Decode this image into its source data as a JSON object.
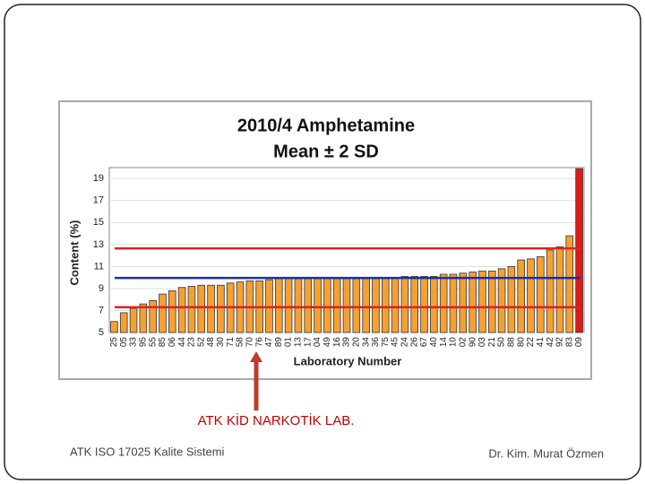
{
  "chart_data": {
    "type": "bar",
    "title": "2010/4 Amphetamine",
    "subtitle": "Mean ± 2 SD",
    "y_label": "Content (%)",
    "x_label": "Laboratory Number",
    "categories": [
      "25",
      "05",
      "33",
      "95",
      "55",
      "85",
      "06",
      "44",
      "23",
      "52",
      "48",
      "30",
      "71",
      "58",
      "70",
      "76",
      "47",
      "89",
      "01",
      "13",
      "17",
      "04",
      "49",
      "16",
      "39",
      "20",
      "34",
      "36",
      "75",
      "45",
      "24",
      "26",
      "67",
      "40",
      "14",
      "10",
      "02",
      "90",
      "03",
      "21",
      "50",
      "88",
      "80",
      "22",
      "41",
      "42",
      "92",
      "83",
      "09"
    ],
    "values": [
      6.0,
      6.8,
      7.2,
      7.6,
      7.9,
      8.5,
      8.8,
      9.1,
      9.2,
      9.3,
      9.3,
      9.3,
      9.5,
      9.6,
      9.7,
      9.7,
      9.8,
      9.9,
      9.9,
      9.9,
      9.9,
      9.9,
      9.9,
      9.9,
      9.9,
      9.9,
      9.9,
      9.9,
      10.0,
      10.0,
      10.1,
      10.1,
      10.1,
      10.1,
      10.3,
      10.3,
      10.4,
      10.5,
      10.6,
      10.6,
      10.8,
      11.0,
      11.6,
      11.7,
      11.9,
      12.5,
      12.8,
      13.8,
      19.9
    ],
    "colors": [
      "#f5a033",
      "#f5a033",
      "#f5a033",
      "#f5a033",
      "#f5a033",
      "#f5a033",
      "#f5a033",
      "#f5a033",
      "#f5a033",
      "#f5a033",
      "#f5a033",
      "#f5a033",
      "#f5a033",
      "#f5a033",
      "#f5a033",
      "#f5a033",
      "#f5a033",
      "#f5a033",
      "#f5a033",
      "#f5a033",
      "#f5a033",
      "#f5a033",
      "#f5a033",
      "#f5a033",
      "#f5a033",
      "#f5a033",
      "#f5a033",
      "#f5a033",
      "#f5a033",
      "#f5a033",
      "#f5a033",
      "#f5a033",
      "#f5a033",
      "#f5a033",
      "#f5a033",
      "#f5a033",
      "#f5a033",
      "#f5a033",
      "#f5a033",
      "#f5a033",
      "#f5a033",
      "#f5a033",
      "#f5a033",
      "#f5a033",
      "#f5a033",
      "#f5a033",
      "#f5a033",
      "#f5a033",
      "#e01818"
    ],
    "reference_lines": [
      {
        "value": 12.65,
        "color": "#e02020"
      },
      {
        "value": 9.96,
        "color": "#1a2ea8"
      },
      {
        "value": 7.3,
        "color": "#e02020"
      }
    ],
    "ylim": [
      5,
      20
    ],
    "yticks": [
      5,
      7,
      9,
      11,
      13,
      15,
      17,
      19
    ],
    "grid": true
  },
  "annotation": "ATK KİD NARKOTİK LAB.",
  "footer": {
    "left": "ATK ISO 17025 Kalite Sistemi",
    "right": "Dr. Kim. Murat Özmen"
  }
}
